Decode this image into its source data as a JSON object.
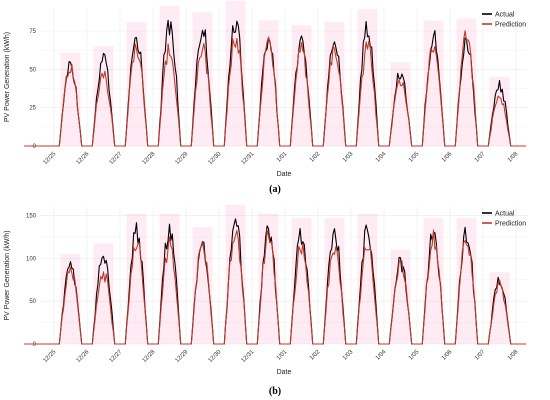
{
  "chart_data": [
    {
      "type": "line",
      "panel_label": "(a)",
      "xlabel": "Date",
      "ylabel": "PV Power Generation (kW/h)",
      "ylim": [
        0,
        90
      ],
      "yticks": [
        0,
        25,
        50,
        75
      ],
      "x_tick_labels": [
        "12/25",
        "12/26",
        "12/27",
        "12/28",
        "12/29",
        "12/30",
        "12/31",
        "1/01",
        "1/02",
        "1/03",
        "1/04",
        "1/05",
        "1/06",
        "1/07",
        "1/08"
      ],
      "legend": {
        "position": "top-right",
        "entries": [
          "Actual",
          "Prediction"
        ]
      },
      "grid": true,
      "series": [
        {
          "name": "Actual",
          "color": "#000000",
          "daily_peaks": [
            58,
            62,
            77,
            87,
            83,
            90,
            78,
            75,
            77,
            85,
            52,
            78,
            76,
            43
          ]
        },
        {
          "name": "Prediction",
          "color": "#c0392b",
          "daily_peaks": [
            58,
            52,
            72,
            70,
            70,
            78,
            75,
            68,
            68,
            70,
            48,
            72,
            79,
            35
          ]
        }
      ]
    },
    {
      "type": "line",
      "panel_label": "(b)",
      "xlabel": "Date",
      "ylabel": "PV Power Generation (kW/h)",
      "ylim": [
        0,
        160
      ],
      "yticks": [
        0,
        50,
        100,
        150
      ],
      "x_tick_labels": [
        "12/25",
        "12/26",
        "12/27",
        "12/28",
        "12/29",
        "12/30",
        "12/31",
        "1/01",
        "1/02",
        "1/03",
        "1/04",
        "1/05",
        "1/06",
        "1/07",
        "1/08"
      ],
      "legend": {
        "position": "top-right",
        "entries": [
          "Actual",
          "Prediction"
        ]
      },
      "grid": true,
      "series": [
        {
          "name": "Actual",
          "color": "#000000",
          "daily_peaks": [
            100,
            112,
            145,
            145,
            130,
            155,
            145,
            140,
            140,
            145,
            105,
            140,
            140,
            80
          ]
        },
        {
          "name": "Prediction",
          "color": "#c0392b",
          "daily_peaks": [
            95,
            90,
            130,
            125,
            125,
            145,
            140,
            125,
            125,
            125,
            100,
            135,
            135,
            75
          ]
        }
      ]
    }
  ]
}
